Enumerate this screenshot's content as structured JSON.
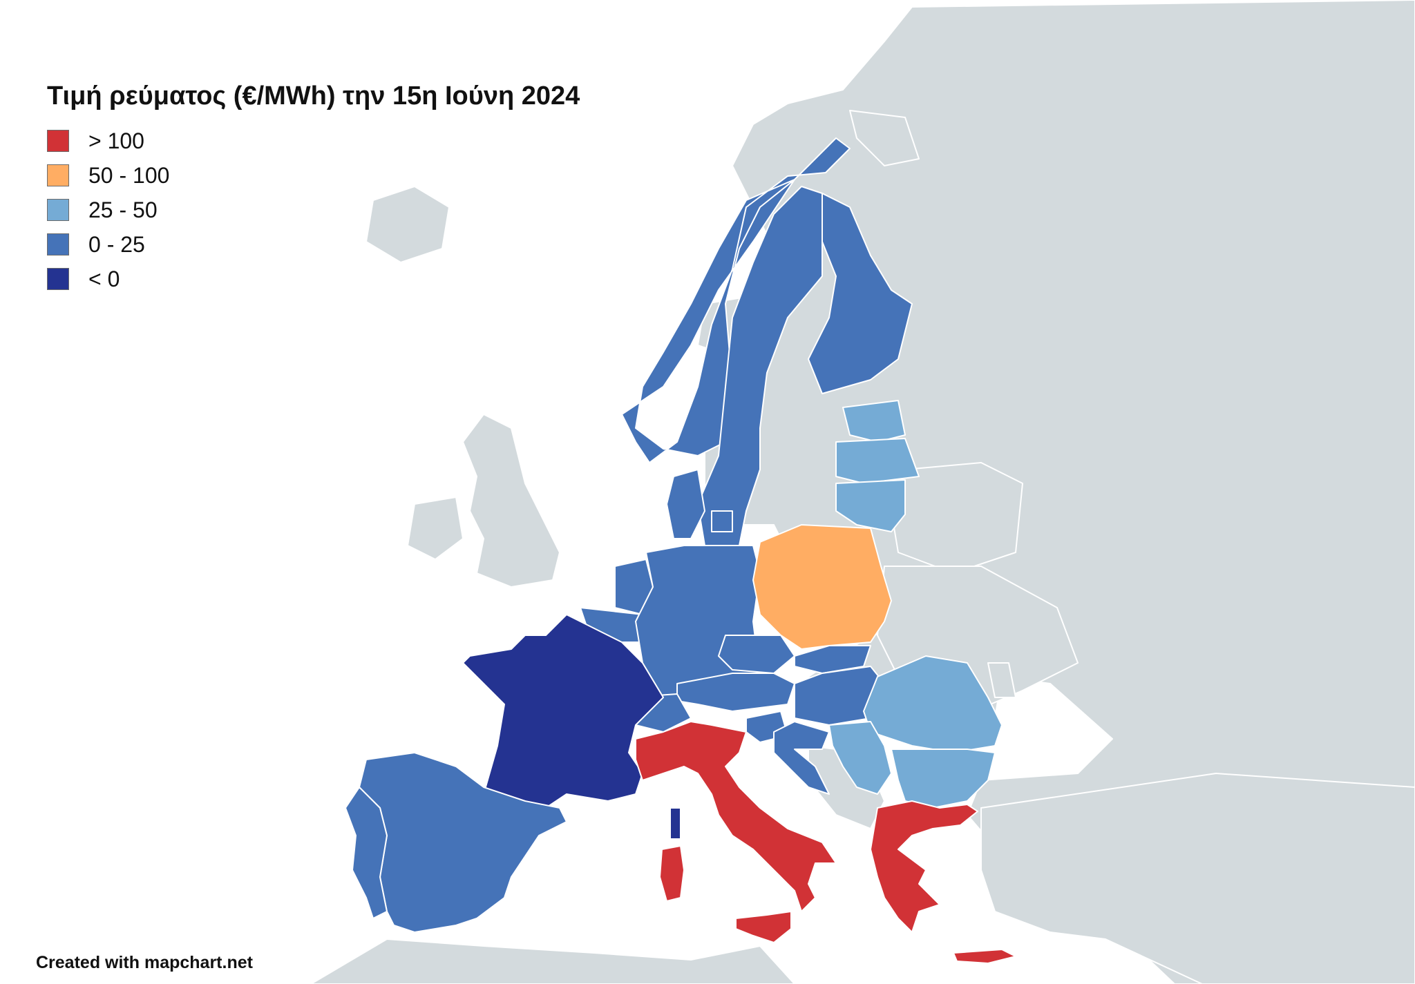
{
  "title": "Τιμή ρεύματος (€/MWh) την 15η Ιούνη 2024",
  "legend": [
    {
      "label": "> 100",
      "color": "#d13236"
    },
    {
      "label": "50 - 100",
      "color": "#ffad63"
    },
    {
      "label": "25 - 50",
      "color": "#75abd5"
    },
    {
      "label": "0 - 25",
      "color": "#4573b8"
    },
    {
      "label": "< 0",
      "color": "#243391"
    }
  ],
  "credit": "Created with mapchart.net",
  "colors": {
    "no_data": "#d3dadd",
    "sea": "#ffffff",
    "border": "#ffffff"
  },
  "regions": [
    {
      "name": "France",
      "category": "< 0"
    },
    {
      "name": "Corsica",
      "category": "< 0"
    },
    {
      "name": "Spain",
      "category": "0 - 25"
    },
    {
      "name": "Portugal",
      "category": "0 - 25"
    },
    {
      "name": "Belgium",
      "category": "0 - 25"
    },
    {
      "name": "Netherlands",
      "category": "0 - 25"
    },
    {
      "name": "Germany",
      "category": "0 - 25"
    },
    {
      "name": "Denmark",
      "category": "0 - 25"
    },
    {
      "name": "Norway",
      "category": "0 - 25"
    },
    {
      "name": "Sweden",
      "category": "0 - 25"
    },
    {
      "name": "Finland",
      "category": "0 - 25"
    },
    {
      "name": "Switzerland",
      "category": "0 - 25"
    },
    {
      "name": "Austria",
      "category": "0 - 25"
    },
    {
      "name": "Czechia",
      "category": "0 - 25"
    },
    {
      "name": "Slovakia",
      "category": "0 - 25"
    },
    {
      "name": "Hungary",
      "category": "0 - 25"
    },
    {
      "name": "Slovenia",
      "category": "0 - 25"
    },
    {
      "name": "Croatia",
      "category": "0 - 25"
    },
    {
      "name": "Estonia",
      "category": "25 - 50"
    },
    {
      "name": "Latvia",
      "category": "25 - 50"
    },
    {
      "name": "Lithuania",
      "category": "25 - 50"
    },
    {
      "name": "Romania",
      "category": "25 - 50"
    },
    {
      "name": "Serbia",
      "category": "25 - 50"
    },
    {
      "name": "Bulgaria",
      "category": "25 - 50"
    },
    {
      "name": "Poland",
      "category": "50 - 100"
    },
    {
      "name": "Italy",
      "category": "> 100"
    },
    {
      "name": "Sardinia",
      "category": "> 100"
    },
    {
      "name": "Sicily",
      "category": "> 100"
    },
    {
      "name": "Greece",
      "category": "> 100"
    },
    {
      "name": "Crete",
      "category": "> 100"
    }
  ]
}
